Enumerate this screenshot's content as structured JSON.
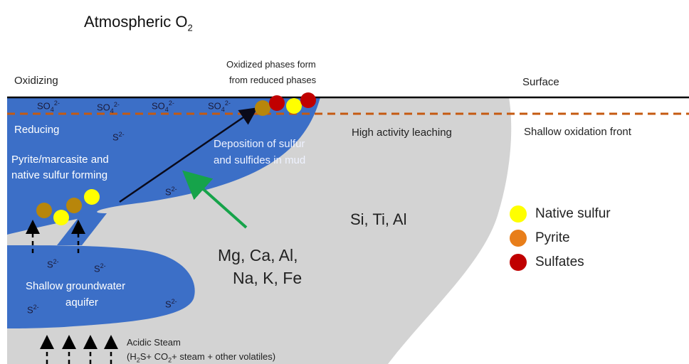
{
  "title": {
    "main": "Atmospheric O",
    "sub": "2"
  },
  "labels": {
    "oxidizing": "Oxidizing",
    "surface": "Surface",
    "oxidized_line1": "Oxidized phases form",
    "oxidized_line2": "from reduced phases",
    "reducing": "Reducing",
    "pyrite_line1": "Pyrite/marcasite and",
    "pyrite_line2": "native sulfur forming",
    "deposition_line1": "Deposition of sulfur",
    "deposition_line2": "and sulfides in mud",
    "high_activity": "High activity leaching",
    "shallow_front": "Shallow oxidation front",
    "si_ti_al": "Si, Ti, Al",
    "mg_line1": "Mg, Ca, Al,",
    "mg_line2": "Na, K, Fe",
    "aquifer_line1": "Shallow groundwater",
    "aquifer_line2": "aquifer",
    "steam_line1": "Acidic Steam",
    "steam_line2_a": "(H",
    "steam_line2_sub1": "2",
    "steam_line2_b": "S+ CO",
    "steam_line2_sub2": "2",
    "steam_line2_c": "+ steam + other volatiles)"
  },
  "ions": {
    "so4_base": "SO",
    "so4_sub": "4",
    "so4_sup": "2-",
    "s_base": "S",
    "s_sup": "2-"
  },
  "legend": [
    {
      "label": "Native sulfur",
      "color": "#ffff00"
    },
    {
      "label": "Pyrite",
      "color": "#e87e1a"
    },
    {
      "label": "Sulfates",
      "color": "#c00000"
    }
  ],
  "colors": {
    "blue": "#3c6fc7",
    "grey": "#d3d3d3",
    "front": "#c55a11",
    "arrow_green": "#16a34a",
    "arrow_black": "#0a0a1a",
    "yellow": "#ffff00",
    "pyrite_dot": "#b8860b",
    "sulfate_dot": "#c00000"
  }
}
